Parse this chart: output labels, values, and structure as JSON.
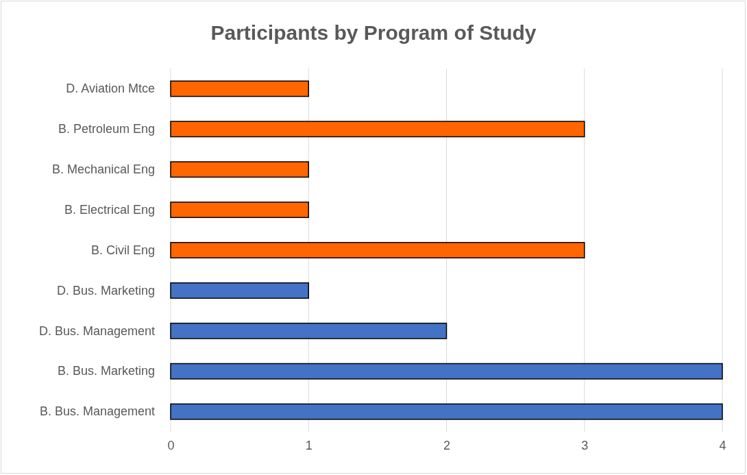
{
  "chart_data": {
    "type": "bar",
    "title": "Participants by Program of Study",
    "orientation": "horizontal",
    "categories": [
      "D. Aviation Mtce",
      "B. Petroleum Eng",
      "B. Mechanical Eng",
      "B. Electrical Eng",
      "B. Civil Eng",
      "D. Bus. Marketing",
      "D. Bus. Management",
      "B. Bus. Marketing",
      "B. Bus. Management"
    ],
    "values": [
      1,
      3,
      1,
      1,
      3,
      1,
      2,
      4,
      4
    ],
    "colors": [
      "#ff6600",
      "#ff6600",
      "#ff6600",
      "#ff6600",
      "#ff6600",
      "#4472c4",
      "#4472c4",
      "#4472c4",
      "#4472c4"
    ],
    "xlim": [
      0,
      4
    ],
    "xticks": [
      0,
      1,
      2,
      3,
      4
    ],
    "grid": "x"
  }
}
